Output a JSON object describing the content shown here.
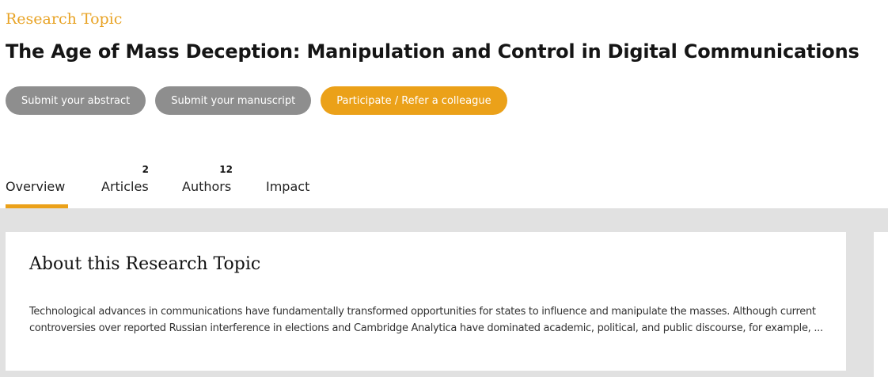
{
  "header": {
    "eyebrow": "Research Topic",
    "title": "The Age of Mass Deception: Manipulation and Control in Digital Communications"
  },
  "actions": {
    "submit_abstract": "Submit your abstract",
    "submit_manuscript": "Submit your manuscript",
    "participate": "Participate / Refer a colleague"
  },
  "tabs": [
    {
      "label": "Overview",
      "count": "",
      "active": true
    },
    {
      "label": "Articles",
      "count": "2",
      "active": false
    },
    {
      "label": "Authors",
      "count": "12",
      "active": false
    },
    {
      "label": "Impact",
      "count": "",
      "active": false
    }
  ],
  "about": {
    "heading": "About this Research Topic",
    "body": "Technological advances in communications have fundamentally transformed opportunities for states to influence and manipulate the masses. Although current controversies over reported Russian interference in elections and Cambridge Analytica have dominated academic, political, and public discourse, for example, ..."
  },
  "colors": {
    "accent": "#eba119",
    "button_grey": "#8e8e8e",
    "content_background": "#e1e1e1"
  }
}
